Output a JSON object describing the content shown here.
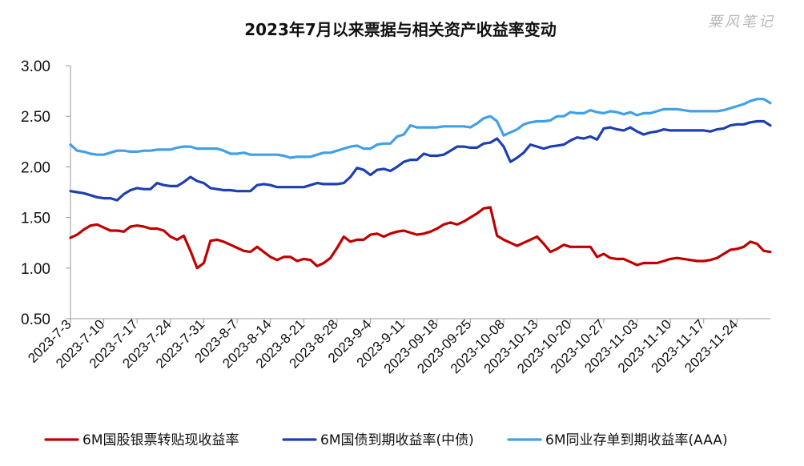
{
  "watermark": "粟风笔记",
  "chart_data": {
    "type": "line",
    "title": "2023年7月以来票据与相关资产收益率变动",
    "xlabel": "",
    "ylabel": "",
    "ylim": [
      0.5,
      3.0
    ],
    "y_ticks": [
      "0.50",
      "1.00",
      "1.50",
      "2.00",
      "2.50",
      "3.00"
    ],
    "x_tick_labels": [
      "2023-7-3",
      "2023-7-10",
      "2023-7-17",
      "2023-7-24",
      "2023-7-31",
      "2023-8-7",
      "2023-8-14",
      "2023-8-21",
      "2023-8-28",
      "2023-9-4",
      "2023-9-11",
      "2023-09-18",
      "2023-09-25",
      "2023-10-08",
      "2023-10-13",
      "2023-10-20",
      "2023-10-27",
      "2023-11-03",
      "2023-11-10",
      "2023-11-17",
      "2023-11-24"
    ],
    "x_tick_positions": [
      0,
      5,
      10,
      15,
      20,
      25,
      30,
      35,
      40,
      45,
      50,
      55,
      60,
      65,
      70,
      75,
      80,
      85,
      90,
      95,
      100
    ],
    "grid": false,
    "legend_position": "bottom",
    "series": [
      {
        "name": "6M国股银票转贴现收益率",
        "color": "#C00000",
        "values": [
          1.3,
          1.33,
          1.38,
          1.42,
          1.43,
          1.4,
          1.37,
          1.37,
          1.36,
          1.41,
          1.42,
          1.41,
          1.39,
          1.39,
          1.37,
          1.31,
          1.28,
          1.32,
          1.17,
          1.0,
          1.05,
          1.27,
          1.28,
          1.26,
          1.23,
          1.2,
          1.17,
          1.16,
          1.21,
          1.16,
          1.11,
          1.08,
          1.11,
          1.11,
          1.07,
          1.09,
          1.08,
          1.02,
          1.05,
          1.1,
          1.2,
          1.31,
          1.26,
          1.28,
          1.28,
          1.33,
          1.34,
          1.31,
          1.34,
          1.36,
          1.37,
          1.35,
          1.33,
          1.34,
          1.36,
          1.39,
          1.43,
          1.45,
          1.43,
          1.46,
          1.5,
          1.54,
          1.59,
          1.6,
          1.32,
          1.28,
          1.25,
          1.22,
          1.25,
          1.28,
          1.31,
          1.24,
          1.16,
          1.19,
          1.23,
          1.21,
          1.21,
          1.21,
          1.21,
          1.11,
          1.14,
          1.1,
          1.09,
          1.09,
          1.06,
          1.03,
          1.05,
          1.05,
          1.05,
          1.07,
          1.09,
          1.1,
          1.09,
          1.08,
          1.07,
          1.07,
          1.08,
          1.1,
          1.14,
          1.18,
          1.19,
          1.21,
          1.26,
          1.24,
          1.17,
          1.16
        ]
      },
      {
        "name": "6M国债到期收益率(中债)",
        "color": "#1F3FB0",
        "values": [
          1.76,
          1.75,
          1.74,
          1.72,
          1.7,
          1.69,
          1.69,
          1.67,
          1.73,
          1.77,
          1.79,
          1.78,
          1.78,
          1.84,
          1.82,
          1.81,
          1.81,
          1.85,
          1.9,
          1.86,
          1.84,
          1.79,
          1.78,
          1.77,
          1.77,
          1.76,
          1.76,
          1.76,
          1.82,
          1.83,
          1.82,
          1.8,
          1.8,
          1.8,
          1.8,
          1.8,
          1.82,
          1.84,
          1.83,
          1.83,
          1.83,
          1.84,
          1.9,
          1.99,
          1.97,
          1.92,
          1.97,
          1.98,
          1.96,
          2.0,
          2.05,
          2.07,
          2.07,
          2.13,
          2.11,
          2.11,
          2.12,
          2.16,
          2.2,
          2.2,
          2.19,
          2.19,
          2.23,
          2.24,
          2.28,
          2.2,
          2.05,
          2.09,
          2.14,
          2.22,
          2.2,
          2.18,
          2.2,
          2.21,
          2.22,
          2.26,
          2.29,
          2.28,
          2.3,
          2.27,
          2.38,
          2.39,
          2.37,
          2.36,
          2.39,
          2.35,
          2.32,
          2.34,
          2.35,
          2.37,
          2.36,
          2.36,
          2.36,
          2.36,
          2.36,
          2.36,
          2.35,
          2.37,
          2.38,
          2.41,
          2.42,
          2.42,
          2.44,
          2.45,
          2.45,
          2.41
        ]
      },
      {
        "name": "6M同业存单到期收益率(AAA)",
        "color": "#41A0E8",
        "values": [
          2.22,
          2.16,
          2.15,
          2.13,
          2.12,
          2.12,
          2.14,
          2.16,
          2.16,
          2.15,
          2.15,
          2.16,
          2.16,
          2.17,
          2.17,
          2.17,
          2.19,
          2.2,
          2.2,
          2.18,
          2.18,
          2.18,
          2.18,
          2.16,
          2.13,
          2.13,
          2.14,
          2.12,
          2.12,
          2.12,
          2.12,
          2.12,
          2.11,
          2.09,
          2.1,
          2.1,
          2.1,
          2.12,
          2.14,
          2.14,
          2.16,
          2.18,
          2.2,
          2.21,
          2.18,
          2.18,
          2.22,
          2.23,
          2.23,
          2.3,
          2.32,
          2.41,
          2.39,
          2.39,
          2.39,
          2.39,
          2.4,
          2.4,
          2.4,
          2.4,
          2.39,
          2.43,
          2.48,
          2.5,
          2.45,
          2.31,
          2.34,
          2.37,
          2.42,
          2.44,
          2.45,
          2.45,
          2.46,
          2.5,
          2.5,
          2.54,
          2.53,
          2.53,
          2.56,
          2.54,
          2.53,
          2.55,
          2.54,
          2.52,
          2.54,
          2.51,
          2.53,
          2.53,
          2.55,
          2.57,
          2.57,
          2.57,
          2.56,
          2.55,
          2.55,
          2.55,
          2.55,
          2.55,
          2.56,
          2.58,
          2.6,
          2.62,
          2.65,
          2.67,
          2.67,
          2.63
        ]
      }
    ]
  }
}
